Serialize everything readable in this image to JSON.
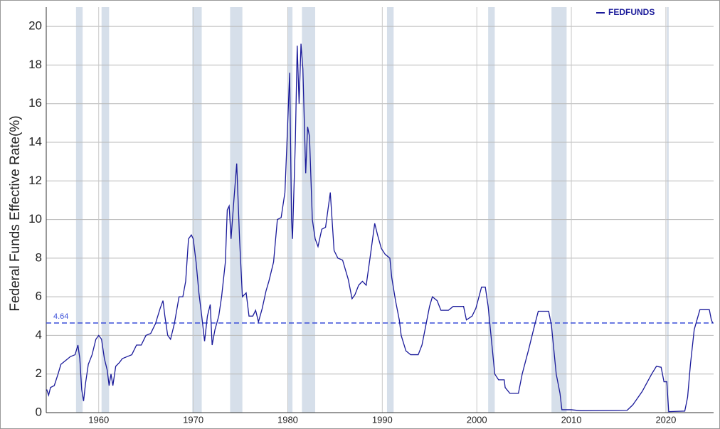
{
  "chart_data": {
    "type": "line",
    "ylabel": "Federal Funds Effective Rate(%)",
    "xlim": [
      1954.45,
      2025.05
    ],
    "ylim": [
      0,
      21
    ],
    "xticks": [
      1960,
      1970,
      1980,
      1990,
      2000,
      2010,
      2020
    ],
    "yticks": [
      0,
      2,
      4,
      6,
      8,
      10,
      12,
      14,
      16,
      18,
      20
    ],
    "grid": true,
    "legend": "top-right",
    "recession_color": "#d6dfea",
    "recessions": [
      [
        1957.6,
        1958.3
      ],
      [
        1960.3,
        1961.1
      ],
      [
        1969.9,
        1970.9
      ],
      [
        1973.9,
        1975.2
      ],
      [
        1980.0,
        1980.5
      ],
      [
        1981.5,
        1982.9
      ],
      [
        1990.5,
        1991.2
      ],
      [
        2001.2,
        2001.9
      ],
      [
        2007.9,
        2009.5
      ],
      [
        2020.1,
        2020.3
      ]
    ],
    "reference_line": {
      "value": 4.64,
      "color": "#3a4fd8"
    },
    "x": [
      1954.5,
      1954.7,
      1954.9,
      1955.3,
      1955.7,
      1956.0,
      1956.5,
      1957.0,
      1957.5,
      1957.8,
      1958.0,
      1958.2,
      1958.4,
      1958.6,
      1958.9,
      1959.3,
      1959.7,
      1960.0,
      1960.3,
      1960.6,
      1960.9,
      1961.1,
      1961.3,
      1961.5,
      1961.8,
      1962.2,
      1962.5,
      1963.0,
      1963.5,
      1964.0,
      1964.5,
      1965.0,
      1965.5,
      1966.0,
      1966.5,
      1966.8,
      1967.0,
      1967.3,
      1967.6,
      1968.0,
      1968.5,
      1968.9,
      1969.2,
      1969.5,
      1969.8,
      1970.0,
      1970.3,
      1970.6,
      1970.9,
      1971.2,
      1971.5,
      1971.8,
      1972.0,
      1972.3,
      1972.7,
      1973.0,
      1973.4,
      1973.6,
      1973.8,
      1974.0,
      1974.3,
      1974.6,
      1974.9,
      1975.2,
      1975.6,
      1975.9,
      1976.3,
      1976.6,
      1976.9,
      1977.3,
      1977.7,
      1978.0,
      1978.5,
      1978.9,
      1979.3,
      1979.7,
      1979.9,
      1980.2,
      1980.4,
      1980.5,
      1980.8,
      1981.0,
      1981.2,
      1981.4,
      1981.6,
      1981.9,
      1982.1,
      1982.3,
      1982.6,
      1982.9,
      1983.2,
      1983.6,
      1984.0,
      1984.5,
      1984.9,
      1985.3,
      1985.8,
      1986.4,
      1986.8,
      1987.1,
      1987.5,
      1987.9,
      1988.3,
      1988.7,
      1989.2,
      1989.5,
      1989.9,
      1990.3,
      1990.8,
      1991.0,
      1991.4,
      1991.8,
      1992.0,
      1992.5,
      1993.0,
      1993.8,
      1994.2,
      1994.6,
      1995.0,
      1995.3,
      1995.8,
      1996.2,
      1997.0,
      1997.5,
      1998.6,
      1998.9,
      1999.5,
      1999.9,
      2000.5,
      2000.9,
      2001.2,
      2001.5,
      2001.9,
      2002.3,
      2002.9,
      2003.0,
      2003.5,
      2004.4,
      2004.8,
      2005.5,
      2006.0,
      2006.5,
      2007.6,
      2007.9,
      2008.2,
      2008.4,
      2008.8,
      2009.0,
      2010.0,
      2011.0,
      2015.9,
      2016.5,
      2017.5,
      2018.5,
      2019.0,
      2019.5,
      2019.8,
      2020.1,
      2020.3,
      2022.0,
      2022.3,
      2022.6,
      2023.0,
      2023.6,
      2024.6,
      2024.8,
      2024.95
    ],
    "series": [
      {
        "name": "FEDFUNDS",
        "color": "#1a1a9a",
        "values": [
          1.2,
          0.9,
          1.3,
          1.4,
          2.0,
          2.5,
          2.7,
          2.9,
          3.0,
          3.5,
          2.8,
          1.2,
          0.6,
          1.5,
          2.5,
          3.0,
          3.8,
          4.0,
          3.8,
          2.8,
          2.2,
          1.4,
          2.0,
          1.4,
          2.4,
          2.6,
          2.8,
          2.9,
          3.0,
          3.5,
          3.5,
          4.0,
          4.1,
          4.6,
          5.4,
          5.8,
          5.0,
          4.0,
          3.8,
          4.6,
          6.0,
          6.0,
          6.8,
          9.0,
          9.2,
          9.0,
          7.8,
          6.2,
          5.0,
          3.7,
          5.0,
          5.6,
          3.5,
          4.3,
          5.0,
          6.0,
          7.8,
          10.5,
          10.7,
          9.0,
          11.0,
          12.9,
          9.0,
          6.0,
          6.2,
          5.0,
          5.0,
          5.3,
          4.7,
          5.4,
          6.3,
          6.8,
          7.8,
          10.0,
          10.1,
          11.4,
          13.8,
          17.6,
          10.0,
          9.0,
          14.0,
          19.0,
          16.0,
          19.1,
          17.8,
          12.4,
          14.8,
          14.3,
          10.0,
          9.0,
          8.6,
          9.5,
          9.6,
          11.4,
          8.4,
          8.0,
          7.9,
          6.9,
          5.9,
          6.1,
          6.6,
          6.8,
          6.6,
          8.0,
          9.8,
          9.2,
          8.5,
          8.2,
          8.0,
          7.0,
          5.8,
          4.8,
          4.0,
          3.2,
          3.0,
          3.0,
          3.5,
          4.5,
          5.5,
          6.0,
          5.8,
          5.3,
          5.3,
          5.5,
          5.5,
          4.8,
          5.0,
          5.4,
          6.5,
          6.5,
          5.5,
          4.0,
          2.0,
          1.7,
          1.7,
          1.3,
          1.0,
          1.0,
          2.0,
          3.3,
          4.3,
          5.25,
          5.25,
          4.5,
          3.0,
          2.0,
          1.0,
          0.15,
          0.15,
          0.1,
          0.12,
          0.4,
          1.1,
          2.0,
          2.4,
          2.35,
          1.6,
          1.6,
          0.05,
          0.08,
          0.8,
          2.5,
          4.3,
          5.33,
          5.33,
          4.83,
          4.64
        ]
      }
    ]
  }
}
